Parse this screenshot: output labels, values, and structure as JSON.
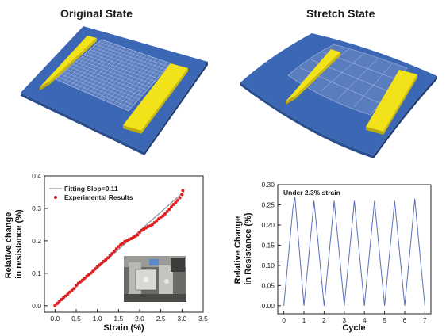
{
  "titles": {
    "left": "Original State",
    "right": "Stretch State"
  },
  "colors": {
    "substrate": "#3b67b5",
    "substrate_edge": "#2a4f8f",
    "electrode": "#f2e21a",
    "electrode_side": "#b9a90c",
    "mesh": "#9fb2d6",
    "data_point": "#e02020",
    "fit_line": "#8a8f9a",
    "cycle_line": "#5a6fb8"
  },
  "chart_data": [
    {
      "type": "scatter",
      "title": "",
      "xlabel": "Strain (%)",
      "ylabel_lines": [
        "Relative change",
        "in resistance (%)"
      ],
      "xlim": [
        -0.25,
        3.5
      ],
      "ylim": [
        -0.02,
        0.4
      ],
      "xticks": [
        "0.0",
        "0.5",
        "1.0",
        "1.5",
        "2.0",
        "2.5",
        "3.0",
        "3.5"
      ],
      "yticks": [
        "0.0",
        "0.1",
        "0.2",
        "0.3",
        "0.4"
      ],
      "grid": false,
      "legend_position": "top-left",
      "series": [
        {
          "name": "Fitting Slop=0.11",
          "kind": "line",
          "x": [
            0.0,
            3.05
          ],
          "y": [
            0.0,
            0.352
          ]
        },
        {
          "name": "Experimental Results",
          "kind": "points",
          "x": [
            0.0,
            0.05,
            0.1,
            0.15,
            0.2,
            0.25,
            0.3,
            0.35,
            0.4,
            0.45,
            0.5,
            0.55,
            0.6,
            0.65,
            0.7,
            0.75,
            0.8,
            0.85,
            0.9,
            0.95,
            1.0,
            1.05,
            1.1,
            1.15,
            1.2,
            1.25,
            1.3,
            1.35,
            1.4,
            1.45,
            1.5,
            1.55,
            1.6,
            1.65,
            1.7,
            1.75,
            1.8,
            1.85,
            1.9,
            1.95,
            2.0,
            2.05,
            2.1,
            2.15,
            2.2,
            2.25,
            2.3,
            2.35,
            2.4,
            2.45,
            2.5,
            2.55,
            2.6,
            2.65,
            2.7,
            2.75,
            2.8,
            2.85,
            2.9,
            2.95,
            3.0,
            3.02
          ],
          "y": [
            0.0,
            0.007,
            0.013,
            0.019,
            0.025,
            0.03,
            0.036,
            0.042,
            0.047,
            0.053,
            0.062,
            0.069,
            0.074,
            0.079,
            0.085,
            0.091,
            0.096,
            0.101,
            0.107,
            0.114,
            0.12,
            0.126,
            0.131,
            0.137,
            0.142,
            0.148,
            0.155,
            0.161,
            0.168,
            0.175,
            0.182,
            0.188,
            0.192,
            0.198,
            0.2,
            0.204,
            0.207,
            0.211,
            0.214,
            0.218,
            0.226,
            0.232,
            0.236,
            0.24,
            0.244,
            0.246,
            0.25,
            0.256,
            0.262,
            0.268,
            0.273,
            0.277,
            0.283,
            0.29,
            0.297,
            0.305,
            0.312,
            0.318,
            0.325,
            0.333,
            0.343,
            0.355
          ]
        }
      ],
      "inset": "photo"
    },
    {
      "type": "line",
      "title": "",
      "annotation": "Under 2.3% strain",
      "xlabel": "Cycle",
      "ylabel_lines": [
        "Relative Change",
        "in Resistance (%)"
      ],
      "xlim": [
        -0.3,
        7.3
      ],
      "ylim": [
        -0.02,
        0.3
      ],
      "xticks": [
        "0",
        "1",
        "2",
        "3",
        "4",
        "5",
        "6",
        "7"
      ],
      "yticks": [
        "0.00",
        "0.05",
        "0.10",
        "0.15",
        "0.20",
        "0.25",
        "0.30"
      ],
      "grid": false,
      "series": [
        {
          "x": [
            0.0,
            0.45,
            0.55,
            1.0,
            1.25,
            1.5,
            1.75,
            2.0,
            2.25,
            2.5,
            2.75,
            3.0,
            3.25,
            3.5,
            3.75,
            4.0,
            4.25,
            4.5,
            4.75,
            5.0,
            5.25,
            5.5,
            5.75,
            6.0,
            6.25,
            6.5,
            6.75,
            7.0
          ],
          "y": [
            0.0,
            0.24,
            0.27,
            0.0,
            0.13,
            0.26,
            0.13,
            0.0,
            0.13,
            0.26,
            0.13,
            0.0,
            0.13,
            0.26,
            0.13,
            0.0,
            0.13,
            0.26,
            0.13,
            0.0,
            0.13,
            0.26,
            0.13,
            0.0,
            0.13,
            0.265,
            0.13,
            0.0
          ]
        }
      ]
    }
  ]
}
